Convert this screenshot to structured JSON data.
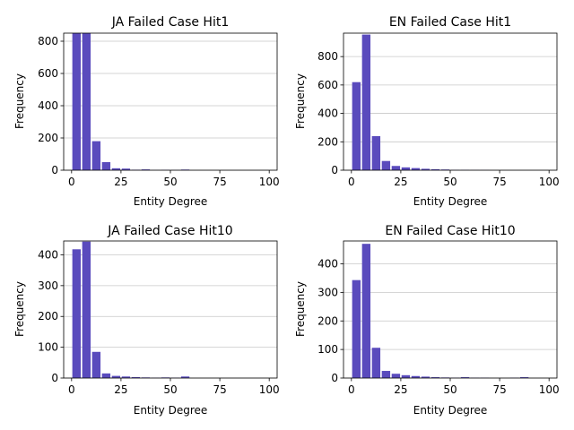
{
  "chart_data": [
    {
      "type": "bar",
      "title": "JA Failed Case Hit1",
      "xlabel": "Entity Degree",
      "ylabel": "Frequency",
      "xlim": [
        -4,
        104
      ],
      "ylim": [
        0,
        850
      ],
      "xticks": [
        0,
        25,
        50,
        75,
        100
      ],
      "yticks": [
        0,
        200,
        400,
        600,
        800
      ],
      "grid": "y",
      "color": "#5a4bbd",
      "bin_width": 5,
      "x": [
        2.5,
        7.5,
        12.5,
        17.5,
        22.5,
        27.5,
        32.5,
        37.5,
        42.5,
        47.5,
        52.5,
        57.5,
        62.5,
        67.5,
        72.5,
        77.5,
        82.5,
        87.5,
        92.5,
        97.5
      ],
      "values": [
        850,
        850,
        180,
        50,
        12,
        10,
        3,
        5,
        1,
        2,
        1,
        4,
        0,
        0,
        0,
        0,
        0,
        0,
        0,
        0
      ]
    },
    {
      "type": "bar",
      "title": "EN Failed Case Hit1",
      "xlabel": "Entity Degree",
      "ylabel": "Frequency",
      "xlim": [
        -4,
        104
      ],
      "ylim": [
        0,
        965
      ],
      "xticks": [
        0,
        25,
        50,
        75,
        100
      ],
      "yticks": [
        0,
        200,
        400,
        600,
        800
      ],
      "grid": "y",
      "color": "#5a4bbd",
      "bin_width": 5,
      "x": [
        2.5,
        7.5,
        12.5,
        17.5,
        22.5,
        27.5,
        32.5,
        37.5,
        42.5,
        47.5,
        52.5,
        57.5,
        62.5,
        67.5,
        72.5,
        77.5,
        82.5,
        87.5,
        92.5,
        97.5
      ],
      "values": [
        620,
        955,
        240,
        65,
        30,
        20,
        15,
        10,
        7,
        5,
        2,
        2,
        1,
        1,
        0,
        0,
        0,
        0,
        0,
        0
      ]
    },
    {
      "type": "bar",
      "title": "JA Failed Case Hit10",
      "xlabel": "Entity Degree",
      "ylabel": "Frequency",
      "xlim": [
        -4,
        104
      ],
      "ylim": [
        0,
        445
      ],
      "xticks": [
        0,
        25,
        50,
        75,
        100
      ],
      "yticks": [
        0,
        100,
        200,
        300,
        400
      ],
      "grid": "y",
      "color": "#5a4bbd",
      "bin_width": 5,
      "x": [
        2.5,
        7.5,
        12.5,
        17.5,
        22.5,
        27.5,
        32.5,
        37.5,
        42.5,
        47.5,
        52.5,
        57.5,
        62.5,
        67.5,
        72.5,
        77.5,
        82.5,
        87.5,
        92.5,
        97.5
      ],
      "values": [
        418,
        443,
        85,
        15,
        7,
        5,
        3,
        2,
        1,
        2,
        1,
        5,
        0,
        0,
        0,
        0,
        0,
        0,
        0,
        0
      ]
    },
    {
      "type": "bar",
      "title": "EN Failed Case Hit10",
      "xlabel": "Entity Degree",
      "ylabel": "Frequency",
      "xlim": [
        -4,
        104
      ],
      "ylim": [
        0,
        480
      ],
      "xticks": [
        0,
        25,
        50,
        75,
        100
      ],
      "yticks": [
        0,
        100,
        200,
        300,
        400
      ],
      "grid": "y",
      "color": "#5a4bbd",
      "bin_width": 5,
      "x": [
        2.5,
        7.5,
        12.5,
        17.5,
        22.5,
        27.5,
        32.5,
        37.5,
        42.5,
        47.5,
        52.5,
        57.5,
        62.5,
        67.5,
        72.5,
        77.5,
        82.5,
        87.5,
        92.5,
        97.5
      ],
      "values": [
        343,
        470,
        106,
        25,
        15,
        10,
        7,
        5,
        3,
        2,
        1,
        3,
        1,
        1,
        0,
        0,
        1,
        3,
        0,
        0
      ]
    }
  ]
}
